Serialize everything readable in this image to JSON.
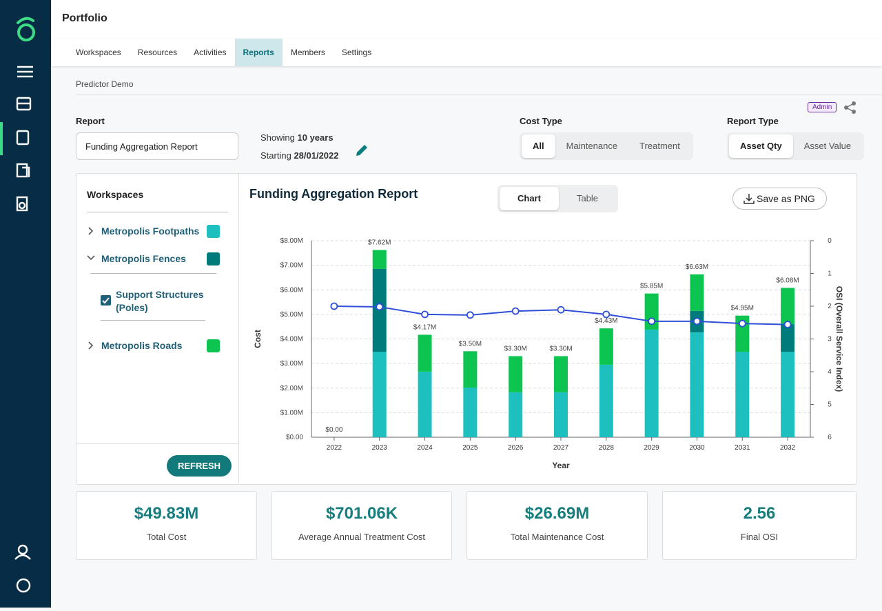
{
  "header": {
    "title": "Portfolio"
  },
  "tabs": [
    "Workspaces",
    "Resources",
    "Activities",
    "Reports",
    "Members",
    "Settings"
  ],
  "active_tab": 3,
  "breadcrumb": "Predictor Demo",
  "badge": "Admin",
  "report": {
    "label": "Report",
    "value": "Funding Aggregation Report",
    "showing_prefix": "Showing",
    "showing_value": "10 years",
    "starting_prefix": "Starting",
    "starting_value": "28/01/2022"
  },
  "cost_type": {
    "label": "Cost Type",
    "options": [
      "All",
      "Maintenance",
      "Treatment"
    ],
    "selected": 0
  },
  "report_type": {
    "label": "Report Type",
    "options": [
      "Asset Qty",
      "Asset Value"
    ],
    "selected": 0
  },
  "workspaces": {
    "title": "Workspaces",
    "sub_item": "Support Structures (Poles)",
    "refresh": "REFRESH"
  },
  "view_toggle": {
    "options": [
      "Chart",
      "Table"
    ],
    "selected": 0
  },
  "save_button": "Save as PNG",
  "chart_data": {
    "type": "bar",
    "stacked": true,
    "title": "Funding Aggregation Report",
    "xlabel": "Year",
    "ylabel": "Cost",
    "y2label": "OSI (Overall Service Index)",
    "categories": [
      "2022",
      "2023",
      "2024",
      "2025",
      "2026",
      "2027",
      "2028",
      "2029",
      "2030",
      "2031",
      "2032"
    ],
    "series": [
      {
        "name": "Metropolis Footpaths",
        "color": "#1dbfbf",
        "values": [
          0,
          3480000,
          2670000,
          2020000,
          1830000,
          1830000,
          2950000,
          4380000,
          4270000,
          3480000,
          3480000
        ]
      },
      {
        "name": "Metropolis Fences",
        "color": "#007b7b",
        "values": [
          0,
          3370000,
          0,
          0,
          0,
          0,
          0,
          0,
          870000,
          0,
          1120000
        ]
      },
      {
        "name": "Metropolis Roads",
        "color": "#0cc44f",
        "values": [
          0,
          770000,
          1500000,
          1480000,
          1470000,
          1470000,
          1480000,
          1470000,
          1490000,
          1470000,
          1480000
        ]
      },
      {
        "type": "line",
        "axis": "y2",
        "color": "#2f4fd8",
        "values": [
          2.0,
          2.02,
          2.25,
          2.27,
          2.15,
          2.11,
          2.25,
          2.46,
          2.46,
          2.53,
          2.56
        ]
      }
    ],
    "totals": [
      0,
      7620000,
      4170000,
      3500000,
      3300000,
      3300000,
      4430000,
      5850000,
      6630000,
      4950000,
      6080000
    ],
    "total_labels": [
      "$0.00",
      "$7.62M",
      "$4.17M",
      "$3.50M",
      "$3.30M",
      "$3.30M",
      "$4.43M",
      "$5.85M",
      "$6.63M",
      "$4.95M",
      "$6.08M"
    ],
    "ylim": [
      0,
      8000000
    ],
    "yticks": [
      {
        "value": 0,
        "label": "$0.00"
      },
      {
        "value": 1000000,
        "label": "$1.00M"
      },
      {
        "value": 2000000,
        "label": "$2.00M"
      },
      {
        "value": 3000000,
        "label": "$3.00M"
      },
      {
        "value": 4000000,
        "label": "$4.00M"
      },
      {
        "value": 5000000,
        "label": "$5.00M"
      },
      {
        "value": 6000000,
        "label": "$6.00M"
      },
      {
        "value": 7000000,
        "label": "$7.00M"
      },
      {
        "value": 8000000,
        "label": "$8.00M"
      }
    ],
    "y2lim": [
      6,
      0
    ],
    "y2ticks": [
      0,
      1,
      2,
      3,
      4,
      5,
      6
    ],
    "grid": true
  },
  "stats": [
    {
      "value": "$49.83M",
      "label": "Total Cost"
    },
    {
      "value": "$701.06K",
      "label": "Average Annual Treatment Cost"
    },
    {
      "value": "$26.69M",
      "label": "Total Maintenance Cost"
    },
    {
      "value": "2.56",
      "label": "Final OSI"
    }
  ]
}
